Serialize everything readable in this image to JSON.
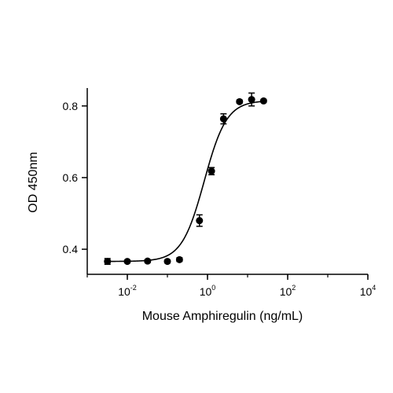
{
  "chart_data": {
    "type": "scatter",
    "xlabel": "Mouse Amphiregulin (ng/mL)",
    "ylabel": "OD 450nm",
    "x_scale": "log10",
    "xlim": [
      0.001,
      10000
    ],
    "ylim": [
      0.33,
      0.85
    ],
    "x_ticks": [
      {
        "base": "10",
        "exp": "-2",
        "value": 0.01
      },
      {
        "base": "10",
        "exp": "0",
        "value": 1
      },
      {
        "base": "10",
        "exp": "2",
        "value": 100
      },
      {
        "base": "10",
        "exp": "4",
        "value": 10000
      }
    ],
    "y_ticks": [
      {
        "label": "0.4",
        "value": 0.4
      },
      {
        "label": "0.6",
        "value": 0.6
      },
      {
        "label": "0.8",
        "value": 0.8
      }
    ],
    "grid": false,
    "legend": "none",
    "series": [
      {
        "x": [
          0.0032,
          0.01,
          0.032,
          0.1,
          0.2,
          0.63,
          1.26,
          2.51,
          6.3,
          12.6,
          25.1
        ],
        "y": [
          0.366,
          0.366,
          0.367,
          0.366,
          0.371,
          0.48,
          0.618,
          0.764,
          0.812,
          0.818,
          0.814
        ],
        "err": [
          0.008,
          0.003,
          0.004,
          0.004,
          0.005,
          0.016,
          0.01,
          0.014,
          0.004,
          0.018,
          0.004
        ]
      }
    ],
    "fit": {
      "model": "4PL",
      "bottom": 0.366,
      "top": 0.815,
      "ec50": 0.83,
      "hill": 1.55
    },
    "colors": {
      "marks": "#000000",
      "background": "#ffffff"
    }
  }
}
